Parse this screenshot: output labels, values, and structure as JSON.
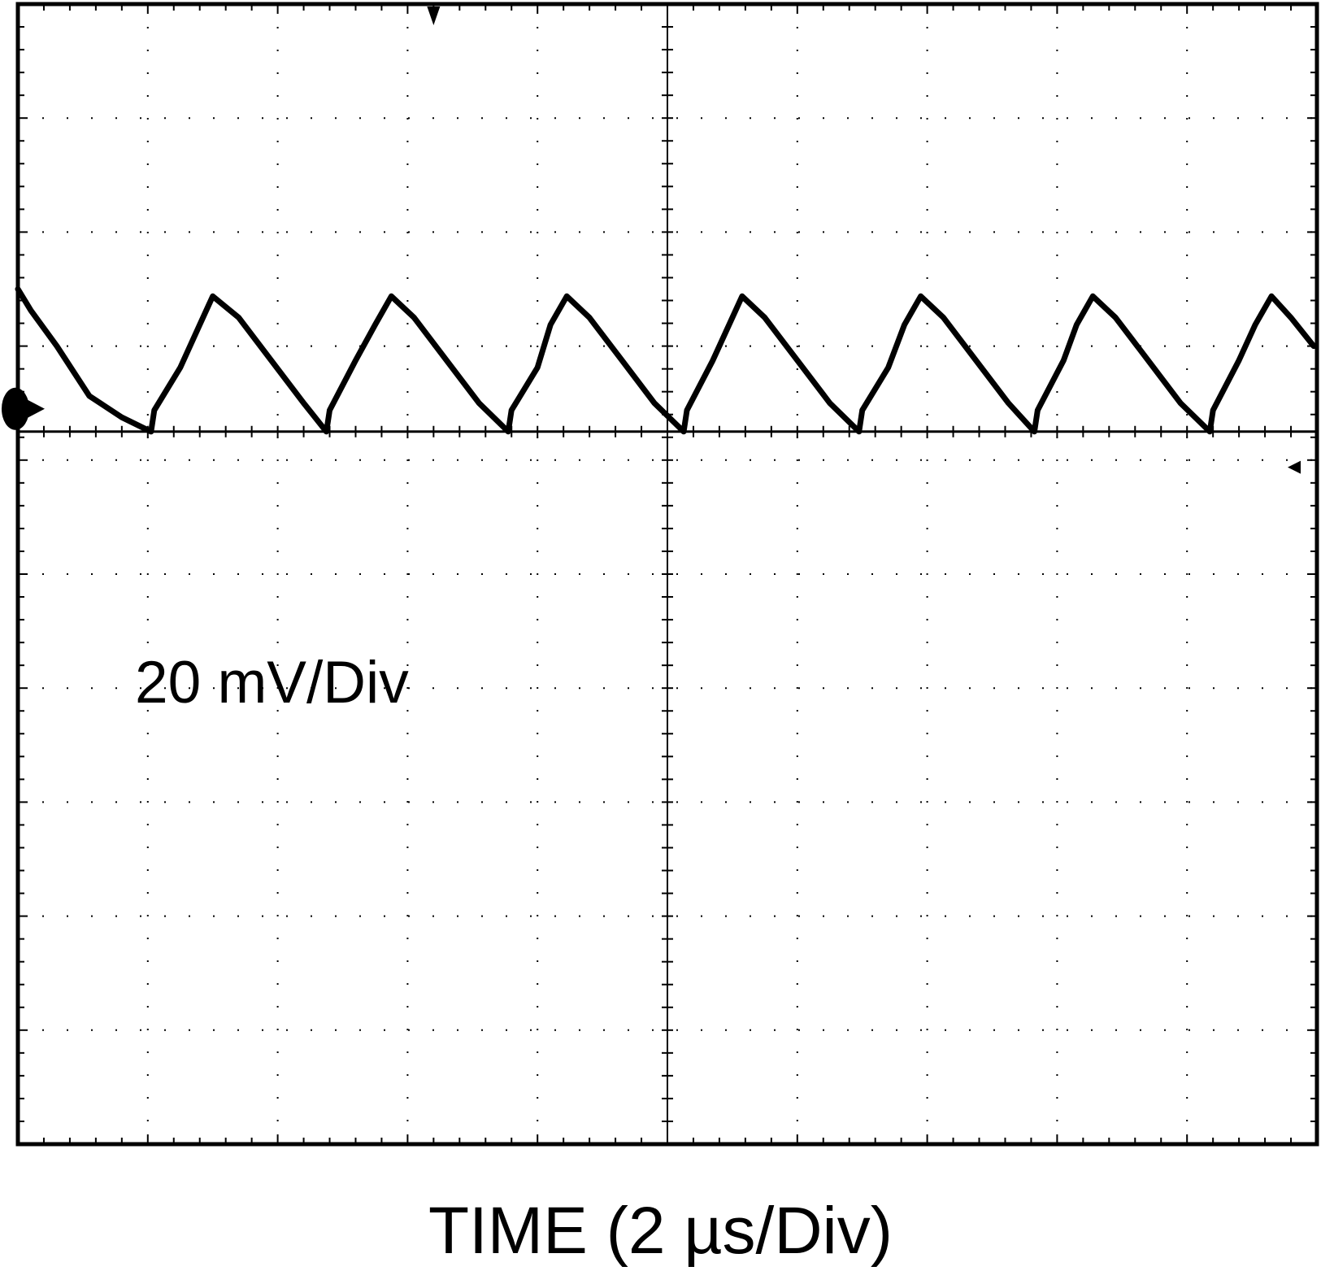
{
  "chart_data": {
    "type": "line",
    "title": "",
    "xlabel": "TIME (2 µs/Div)",
    "ylabel": "",
    "annotations": [
      "20 mV/Div"
    ],
    "units": {
      "x": "µs",
      "y": "mV"
    },
    "x_per_div": 2,
    "y_per_div": 20,
    "xlim": [
      0,
      20
    ],
    "ylim": [
      -100,
      60
    ],
    "grid": true,
    "grid_divisions": {
      "x": 10,
      "y": 10
    },
    "ground_marker": "left-edge",
    "trigger_marker": "top",
    "series": [
      {
        "color": "#000000",
        "x": [
          0.0,
          0.2,
          0.6,
          1.1,
          1.6,
          2.05,
          2.1,
          2.5,
          2.8,
          3.0,
          3.4,
          3.9,
          4.4,
          4.75,
          4.8,
          5.2,
          5.5,
          5.75,
          6.1,
          6.6,
          7.1,
          7.55,
          7.6,
          8.0,
          8.2,
          8.45,
          8.8,
          9.3,
          9.8,
          10.25,
          10.3,
          10.7,
          10.95,
          11.15,
          11.5,
          12.0,
          12.5,
          12.95,
          13.0,
          13.4,
          13.65,
          13.9,
          14.25,
          14.75,
          15.25,
          15.65,
          15.7,
          16.1,
          16.3,
          16.55,
          16.9,
          17.4,
          17.9,
          18.35,
          18.4,
          18.8,
          19.05,
          19.3,
          19.6,
          19.95
        ],
        "y": [
          20,
          17,
          12,
          5,
          2,
          0,
          3,
          9,
          15,
          19,
          16,
          10,
          4,
          0,
          3,
          10,
          15,
          19,
          16,
          10,
          4,
          0,
          3,
          9,
          15,
          19,
          16,
          10,
          4,
          0,
          3,
          10,
          15,
          19,
          16,
          10,
          4,
          0,
          3,
          9,
          15,
          19,
          16,
          10,
          4,
          0,
          3,
          10,
          15,
          19,
          16,
          10,
          4,
          0,
          3,
          10,
          15,
          19,
          16,
          12
        ]
      }
    ]
  }
}
